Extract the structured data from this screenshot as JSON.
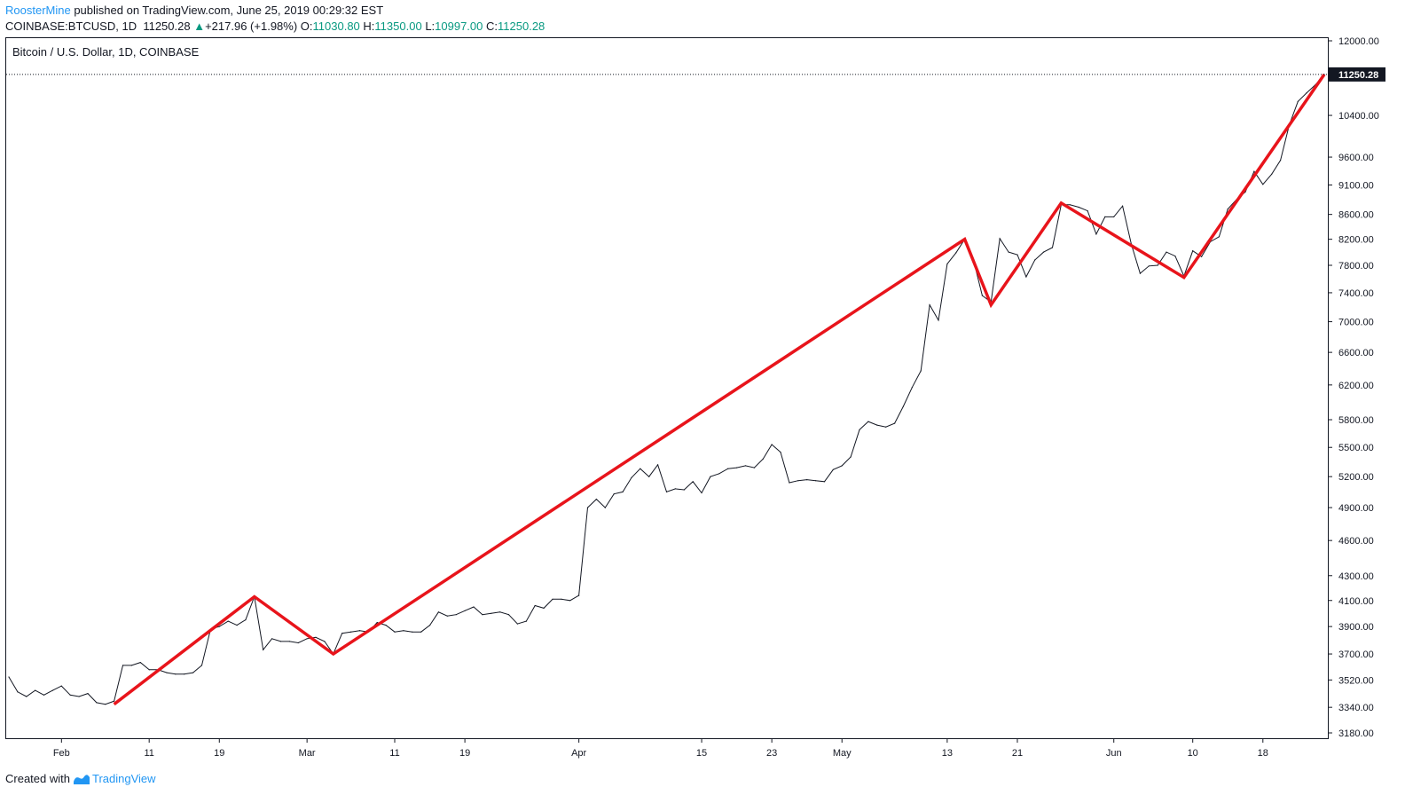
{
  "header": {
    "author": "RoosterMine",
    "published_text": " published on TradingView.com, June 25, 2019 00:29:32 EST",
    "symbol": "COINBASE:BTCUSD, 1D",
    "last": "11250.28",
    "change": "+217.96 (+1.98%)",
    "o_label": "O:",
    "o_value": "11030.80",
    "h_label": "H:",
    "h_value": "11350.00",
    "l_label": "L:",
    "l_value": "10997.00",
    "c_label": "C:",
    "c_value": "11250.28"
  },
  "footer": {
    "created_with": "Created with",
    "brand": "TradingView"
  },
  "colors": {
    "price_line": "#131722",
    "zigzag": "#e8141b",
    "axis_bg": "#ffffff",
    "price_label_bg": "#131722"
  },
  "chart_data": {
    "type": "line",
    "title": "Bitcoin / U.S. Dollar, 1D, COINBASE",
    "scale": "log",
    "current_price": 11250.28,
    "current_price_label": "11250.28",
    "y_ticks": [
      3180,
      3340,
      3520,
      3700,
      3900,
      4100,
      4300,
      4600,
      4900,
      5200,
      5500,
      5800,
      6200,
      6600,
      7000,
      7400,
      7800,
      8200,
      8600,
      9100,
      9600,
      10400,
      12000
    ],
    "y_tick_labels": [
      "3180.00",
      "3340.00",
      "3520.00",
      "3700.00",
      "3900.00",
      "4100.00",
      "4300.00",
      "4600.00",
      "4900.00",
      "5200.00",
      "5500.00",
      "5800.00",
      "6200.00",
      "6600.00",
      "7000.00",
      "7400.00",
      "7800.00",
      "8200.00",
      "8600.00",
      "9100.00",
      "9600.00",
      "10400.00",
      "12000.00"
    ],
    "x_ticks": [
      {
        "label": "Feb",
        "date": "2019-02-01"
      },
      {
        "label": "11",
        "date": "2019-02-11"
      },
      {
        "label": "19",
        "date": "2019-02-19"
      },
      {
        "label": "Mar",
        "date": "2019-03-01"
      },
      {
        "label": "11",
        "date": "2019-03-11"
      },
      {
        "label": "19",
        "date": "2019-03-19"
      },
      {
        "label": "Apr",
        "date": "2019-04-01"
      },
      {
        "label": "15",
        "date": "2019-04-15"
      },
      {
        "label": "23",
        "date": "2019-04-23"
      },
      {
        "label": "May",
        "date": "2019-05-01"
      },
      {
        "label": "13",
        "date": "2019-05-13"
      },
      {
        "label": "21",
        "date": "2019-05-21"
      },
      {
        "label": "Jun",
        "date": "2019-06-01"
      },
      {
        "label": "10",
        "date": "2019-06-10"
      },
      {
        "label": "18",
        "date": "2019-06-18"
      }
    ],
    "series": [
      {
        "values": [
          [
            "2019-01-26",
            3540
          ],
          [
            "2019-01-27",
            3440
          ],
          [
            "2019-01-28",
            3410
          ],
          [
            "2019-01-29",
            3450
          ],
          [
            "2019-01-30",
            3420
          ],
          [
            "2019-01-31",
            3450
          ],
          [
            "2019-02-01",
            3480
          ],
          [
            "2019-02-02",
            3420
          ],
          [
            "2019-02-03",
            3410
          ],
          [
            "2019-02-04",
            3430
          ],
          [
            "2019-02-05",
            3370
          ],
          [
            "2019-02-06",
            3360
          ],
          [
            "2019-02-07",
            3380
          ],
          [
            "2019-02-08",
            3620
          ],
          [
            "2019-02-09",
            3620
          ],
          [
            "2019-02-10",
            3640
          ],
          [
            "2019-02-11",
            3590
          ],
          [
            "2019-02-12",
            3590
          ],
          [
            "2019-02-13",
            3570
          ],
          [
            "2019-02-14",
            3560
          ],
          [
            "2019-02-15",
            3560
          ],
          [
            "2019-02-16",
            3570
          ],
          [
            "2019-02-17",
            3620
          ],
          [
            "2019-02-18",
            3880
          ],
          [
            "2019-02-19",
            3900
          ],
          [
            "2019-02-20",
            3940
          ],
          [
            "2019-02-21",
            3910
          ],
          [
            "2019-02-22",
            3950
          ],
          [
            "2019-02-23",
            4130
          ],
          [
            "2019-02-24",
            3730
          ],
          [
            "2019-02-25",
            3810
          ],
          [
            "2019-02-26",
            3790
          ],
          [
            "2019-02-27",
            3790
          ],
          [
            "2019-02-28",
            3780
          ],
          [
            "2019-03-01",
            3810
          ],
          [
            "2019-03-02",
            3820
          ],
          [
            "2019-03-03",
            3790
          ],
          [
            "2019-03-04",
            3700
          ],
          [
            "2019-03-05",
            3850
          ],
          [
            "2019-03-06",
            3860
          ],
          [
            "2019-03-07",
            3870
          ],
          [
            "2019-03-08",
            3860
          ],
          [
            "2019-03-09",
            3930
          ],
          [
            "2019-03-10",
            3910
          ],
          [
            "2019-03-11",
            3860
          ],
          [
            "2019-03-12",
            3870
          ],
          [
            "2019-03-13",
            3860
          ],
          [
            "2019-03-14",
            3860
          ],
          [
            "2019-03-15",
            3910
          ],
          [
            "2019-03-16",
            4010
          ],
          [
            "2019-03-17",
            3980
          ],
          [
            "2019-03-18",
            3990
          ],
          [
            "2019-03-19",
            4020
          ],
          [
            "2019-03-20",
            4050
          ],
          [
            "2019-03-21",
            3990
          ],
          [
            "2019-03-22",
            4000
          ],
          [
            "2019-03-23",
            4010
          ],
          [
            "2019-03-24",
            3990
          ],
          [
            "2019-03-25",
            3920
          ],
          [
            "2019-03-26",
            3940
          ],
          [
            "2019-03-27",
            4060
          ],
          [
            "2019-03-28",
            4040
          ],
          [
            "2019-03-29",
            4110
          ],
          [
            "2019-03-30",
            4110
          ],
          [
            "2019-03-31",
            4100
          ],
          [
            "2019-04-01",
            4140
          ],
          [
            "2019-04-02",
            4900
          ],
          [
            "2019-04-03",
            4980
          ],
          [
            "2019-04-04",
            4900
          ],
          [
            "2019-04-05",
            5030
          ],
          [
            "2019-04-06",
            5050
          ],
          [
            "2019-04-07",
            5190
          ],
          [
            "2019-04-08",
            5280
          ],
          [
            "2019-04-09",
            5200
          ],
          [
            "2019-04-10",
            5320
          ],
          [
            "2019-04-11",
            5050
          ],
          [
            "2019-04-12",
            5080
          ],
          [
            "2019-04-13",
            5070
          ],
          [
            "2019-04-14",
            5150
          ],
          [
            "2019-04-15",
            5040
          ],
          [
            "2019-04-16",
            5200
          ],
          [
            "2019-04-17",
            5230
          ],
          [
            "2019-04-18",
            5280
          ],
          [
            "2019-04-19",
            5290
          ],
          [
            "2019-04-20",
            5310
          ],
          [
            "2019-04-21",
            5290
          ],
          [
            "2019-04-22",
            5380
          ],
          [
            "2019-04-23",
            5530
          ],
          [
            "2019-04-24",
            5450
          ],
          [
            "2019-04-25",
            5140
          ],
          [
            "2019-04-26",
            5160
          ],
          [
            "2019-04-27",
            5170
          ],
          [
            "2019-04-28",
            5160
          ],
          [
            "2019-04-29",
            5150
          ],
          [
            "2019-04-30",
            5270
          ],
          [
            "2019-05-01",
            5310
          ],
          [
            "2019-05-02",
            5400
          ],
          [
            "2019-05-03",
            5690
          ],
          [
            "2019-05-04",
            5780
          ],
          [
            "2019-05-05",
            5740
          ],
          [
            "2019-05-06",
            5720
          ],
          [
            "2019-05-07",
            5760
          ],
          [
            "2019-05-08",
            5950
          ],
          [
            "2019-05-09",
            6170
          ],
          [
            "2019-05-10",
            6370
          ],
          [
            "2019-05-11",
            7230
          ],
          [
            "2019-05-12",
            7020
          ],
          [
            "2019-05-13",
            7820
          ],
          [
            "2019-05-14",
            7990
          ],
          [
            "2019-05-15",
            8200
          ],
          [
            "2019-05-16",
            7880
          ],
          [
            "2019-05-17",
            7360
          ],
          [
            "2019-05-18",
            7270
          ],
          [
            "2019-05-19",
            8210
          ],
          [
            "2019-05-20",
            8000
          ],
          [
            "2019-05-21",
            7960
          ],
          [
            "2019-05-22",
            7630
          ],
          [
            "2019-05-23",
            7880
          ],
          [
            "2019-05-24",
            8000
          ],
          [
            "2019-05-25",
            8070
          ],
          [
            "2019-05-26",
            8760
          ],
          [
            "2019-05-27",
            8760
          ],
          [
            "2019-05-28",
            8720
          ],
          [
            "2019-05-29",
            8660
          ],
          [
            "2019-05-30",
            8280
          ],
          [
            "2019-05-31",
            8560
          ],
          [
            "2019-06-01",
            8560
          ],
          [
            "2019-06-02",
            8740
          ],
          [
            "2019-06-03",
            8120
          ],
          [
            "2019-06-04",
            7680
          ],
          [
            "2019-06-05",
            7790
          ],
          [
            "2019-06-06",
            7800
          ],
          [
            "2019-06-07",
            8000
          ],
          [
            "2019-06-08",
            7940
          ],
          [
            "2019-06-09",
            7640
          ],
          [
            "2019-06-10",
            8020
          ],
          [
            "2019-06-11",
            7930
          ],
          [
            "2019-06-12",
            8160
          ],
          [
            "2019-06-13",
            8240
          ],
          [
            "2019-06-14",
            8690
          ],
          [
            "2019-06-15",
            8850
          ],
          [
            "2019-06-16",
            8980
          ],
          [
            "2019-06-17",
            9340
          ],
          [
            "2019-06-18",
            9110
          ],
          [
            "2019-06-19",
            9290
          ],
          [
            "2019-06-20",
            9540
          ],
          [
            "2019-06-21",
            10210
          ],
          [
            "2019-06-22",
            10680
          ],
          [
            "2019-06-23",
            10860
          ],
          [
            "2019-06-24",
            11030
          ],
          [
            "2019-06-25",
            11250.28
          ]
        ]
      }
    ],
    "zigzag_overlay": [
      [
        "2019-02-07",
        3360
      ],
      [
        "2019-02-23",
        4130
      ],
      [
        "2019-03-04",
        3700
      ],
      [
        "2019-05-15",
        8200
      ],
      [
        "2019-05-18",
        7230
      ],
      [
        "2019-05-26",
        8790
      ],
      [
        "2019-06-09",
        7620
      ],
      [
        "2019-06-25",
        11250.28
      ]
    ]
  }
}
